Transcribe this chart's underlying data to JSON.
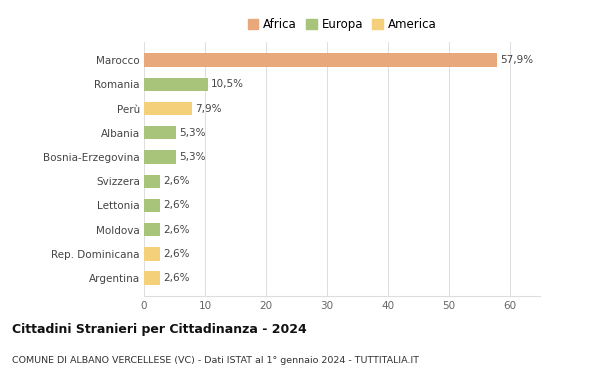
{
  "categories": [
    "Argentina",
    "Rep. Dominicana",
    "Moldova",
    "Lettonia",
    "Svizzera",
    "Bosnia-Erzegovina",
    "Albania",
    "Perù",
    "Romania",
    "Marocco"
  ],
  "values": [
    2.6,
    2.6,
    2.6,
    2.6,
    2.6,
    5.3,
    5.3,
    7.9,
    10.5,
    57.9
  ],
  "labels": [
    "2,6%",
    "2,6%",
    "2,6%",
    "2,6%",
    "2,6%",
    "5,3%",
    "5,3%",
    "7,9%",
    "10,5%",
    "57,9%"
  ],
  "colors": [
    "#f5d07a",
    "#f5d07a",
    "#a8c47a",
    "#a8c47a",
    "#a8c47a",
    "#a8c47a",
    "#a8c47a",
    "#f5d07a",
    "#a8c47a",
    "#e8a87c"
  ],
  "legend": [
    {
      "label": "Africa",
      "color": "#e8a87c"
    },
    {
      "label": "Europa",
      "color": "#a8c47a"
    },
    {
      "label": "America",
      "color": "#f5d07a"
    }
  ],
  "title1": "Cittadini Stranieri per Cittadinanza - 2024",
  "title2": "COMUNE DI ALBANO VERCELLESE (VC) - Dati ISTAT al 1° gennaio 2024 - TUTTITALIA.IT",
  "xlim": [
    0,
    65
  ],
  "xticks": [
    0,
    10,
    20,
    30,
    40,
    50,
    60
  ],
  "background_color": "#ffffff",
  "grid_color": "#dddddd"
}
